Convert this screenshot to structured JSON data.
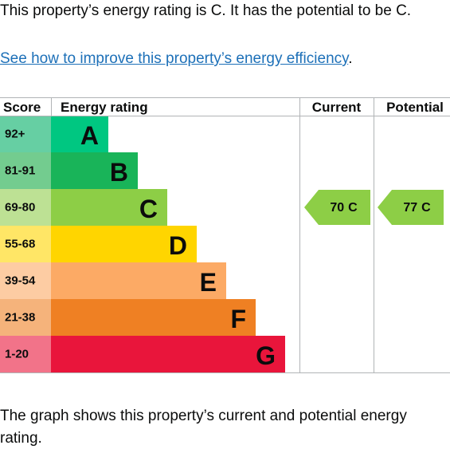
{
  "intro": "This property’s energy rating is C. It has the potential to be C.",
  "link": "See how to improve this property’s energy efficiency",
  "link_trailing": ".",
  "graph": {
    "headers": [
      "Score",
      "Energy rating",
      "Current",
      "Potential"
    ],
    "bands": [
      {
        "score": "92+",
        "letter": "A",
        "color": "#00c781",
        "score_color": "#66cfa3"
      },
      {
        "score": "81-91",
        "letter": "B",
        "color": "#19b459",
        "score_color": "#73cc8f"
      },
      {
        "score": "69-80",
        "letter": "C",
        "color": "#8dce46",
        "score_color": "#bde194"
      },
      {
        "score": "55-68",
        "letter": "D",
        "color": "#ffd500",
        "score_color": "#ffe666"
      },
      {
        "score": "39-54",
        "letter": "E",
        "color": "#fcaa65",
        "score_color": "#fdcca3"
      },
      {
        "score": "21-38",
        "letter": "F",
        "color": "#ef8023",
        "score_color": "#f5b37b"
      },
      {
        "score": "1-20",
        "letter": "G",
        "color": "#e9153b",
        "score_color": "#f27389"
      }
    ],
    "current": {
      "value": 70,
      "letter": "C"
    },
    "potential": {
      "value": 77,
      "letter": "C"
    }
  },
  "summary": "The graph shows this property’s current and potential energy rating."
}
